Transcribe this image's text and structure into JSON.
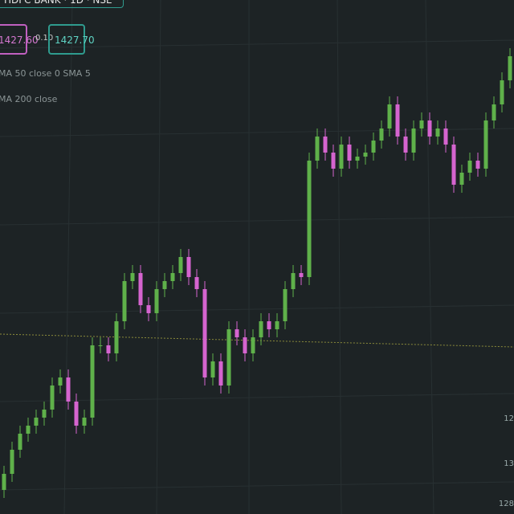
{
  "header": {
    "symbol": "HDFC BANK · 1D · NSE",
    "sell_price": "1427.60",
    "spread": "0.10",
    "buy_price": "1427.70"
  },
  "indicators": [
    "MA 50 close 0 SMA 5",
    "MA 200 close"
  ],
  "price_axis_fragments": [
    "12",
    "13",
    "128"
  ],
  "candles": {
    "ylim": [
      1240,
      1560
    ],
    "up_color": "#5fb14a",
    "down_color": "#d564cf",
    "open": [
      1255,
      1265,
      1280,
      1290,
      1295,
      1300,
      1305,
      1320,
      1325,
      1310,
      1295,
      1300,
      1345,
      1345,
      1340,
      1360,
      1385,
      1390,
      1370,
      1365,
      1380,
      1385,
      1390,
      1400,
      1387.5,
      1380,
      1325,
      1335,
      1320,
      1355,
      1350,
      1340,
      1350,
      1360,
      1355,
      1360,
      1380,
      1390,
      1387.5,
      1460,
      1475,
      1465,
      1455,
      1470,
      1460,
      1462.5,
      1465,
      1472.5,
      1480,
      1495,
      1475,
      1465,
      1480,
      1485,
      1475,
      1480,
      1470,
      1445,
      1452.5,
      1460,
      1455,
      1485,
      1495,
      1510
    ],
    "high": [
      1270,
      1285,
      1295,
      1300,
      1305,
      1310,
      1325,
      1330,
      1330,
      1315,
      1305,
      1350,
      1350,
      1350,
      1365,
      1390,
      1395,
      1395,
      1375,
      1385,
      1390,
      1395,
      1405,
      1405,
      1392.5,
      1385,
      1340,
      1340,
      1360,
      1360,
      1355,
      1355,
      1365,
      1365,
      1365,
      1385,
      1395,
      1395,
      1465,
      1480,
      1480,
      1470,
      1475,
      1475,
      1467.5,
      1470,
      1477.5,
      1485,
      1500,
      1500,
      1480,
      1485,
      1490,
      1490,
      1485,
      1485,
      1475,
      1457.5,
      1465,
      1465,
      1490,
      1500,
      1515,
      1530
    ],
    "low": [
      1250,
      1260,
      1275,
      1285,
      1290,
      1295,
      1300,
      1315,
      1305,
      1290,
      1290,
      1295,
      1340,
      1335,
      1335,
      1355,
      1380,
      1365,
      1360,
      1360,
      1375,
      1380,
      1385,
      1382.5,
      1375,
      1320,
      1320,
      1315,
      1315,
      1345,
      1335,
      1335,
      1345,
      1350,
      1350,
      1355,
      1375,
      1382.5,
      1382.5,
      1455,
      1460,
      1450,
      1450,
      1455,
      1455,
      1457.5,
      1460,
      1467.5,
      1475,
      1470,
      1460,
      1460,
      1475,
      1470,
      1470,
      1465,
      1440,
      1440,
      1447.5,
      1450,
      1450,
      1480,
      1490,
      1505
    ],
    "close": [
      1265,
      1280,
      1290,
      1295,
      1300,
      1305,
      1320,
      1325,
      1310,
      1295,
      1300,
      1345,
      1345,
      1340,
      1360,
      1385,
      1390,
      1370,
      1365,
      1380,
      1385,
      1390,
      1400,
      1387.5,
      1380,
      1325,
      1335,
      1320,
      1355,
      1350,
      1340,
      1350,
      1360,
      1355,
      1360,
      1380,
      1390,
      1387.5,
      1460,
      1475,
      1465,
      1455,
      1470,
      1460,
      1462.5,
      1465,
      1472.5,
      1480,
      1495,
      1475,
      1465,
      1480,
      1485,
      1475,
      1480,
      1470,
      1445,
      1452.5,
      1460,
      1455,
      1485,
      1495,
      1510,
      1525
    ]
  }
}
